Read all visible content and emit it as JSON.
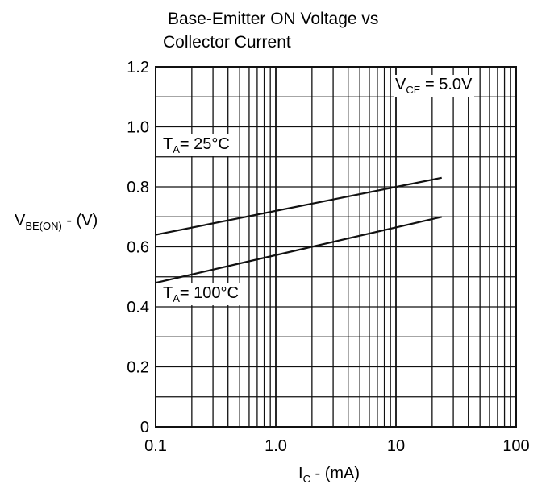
{
  "chart_data": {
    "type": "line",
    "title_line1": "Base-Emitter ON Voltage vs",
    "title_line2": "Collector Current",
    "xlabel": {
      "main": "I",
      "sub": "C",
      "rest": " - (mA)"
    },
    "ylabel": {
      "main": "V",
      "sub": "BE(ON)",
      "rest": " - (V)"
    },
    "x_scale": "log",
    "xlim": [
      0.1,
      100
    ],
    "ylim": [
      0,
      1.2
    ],
    "x_ticks": [
      {
        "value": 0.1,
        "label": "0.1"
      },
      {
        "value": 1,
        "label": "1.0"
      },
      {
        "value": 10,
        "label": "10"
      },
      {
        "value": 100,
        "label": "100"
      }
    ],
    "y_ticks": [
      {
        "value": 0,
        "label": "0"
      },
      {
        "value": 0.2,
        "label": "0.2"
      },
      {
        "value": 0.4,
        "label": "0.4"
      },
      {
        "value": 0.6,
        "label": "0.6"
      },
      {
        "value": 0.8,
        "label": "0.8"
      },
      {
        "value": 1.0,
        "label": "1.0"
      },
      {
        "value": 1.2,
        "label": "1.2"
      }
    ],
    "grid": true,
    "series": [
      {
        "name": "T_A = 25°C",
        "x": [
          0.1,
          24
        ],
        "y": [
          0.64,
          0.83
        ]
      },
      {
        "name": "T_A = 100°C",
        "x": [
          0.1,
          24
        ],
        "y": [
          0.48,
          0.7
        ]
      }
    ],
    "annotations": [
      {
        "id": "vce",
        "main": "V",
        "sub": "CE",
        "rest": " = 5.0V"
      },
      {
        "id": "ta25",
        "main": "T",
        "sub": "A",
        "rest": "= 25°C"
      },
      {
        "id": "ta100",
        "main": "T",
        "sub": "A",
        "rest": "= 100°C"
      }
    ]
  }
}
